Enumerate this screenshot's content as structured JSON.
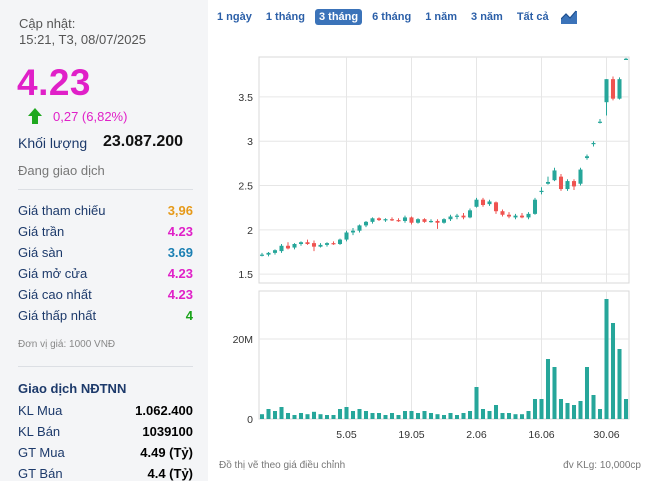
{
  "summary": {
    "updated_label": "Cập nhật:",
    "updated_value": "15:21, T3, 08/07/2025",
    "price": "4.23",
    "change": "0,27 (6,82%)",
    "volume_label": "Khối lượng",
    "volume_value": "23.087.200",
    "status": "Đang giao dịch"
  },
  "price_rows": [
    {
      "label": "Giá tham chiếu",
      "value": "3,96",
      "color": "#e69a1a"
    },
    {
      "label": "Giá trần",
      "value": "4.23",
      "color": "#e020c8"
    },
    {
      "label": "Giá sàn",
      "value": "3.69",
      "color": "#1a7fb3"
    },
    {
      "label": "Giá mở cửa",
      "value": "4.23",
      "color": "#e020c8"
    },
    {
      "label": "Giá cao nhất",
      "value": "4.23",
      "color": "#e020c8"
    },
    {
      "label": "Giá thấp nhất",
      "value": "4",
      "color": "#1aa31a"
    }
  ],
  "unit_note": "Đơn vị giá: 1000 VNĐ",
  "foreign": {
    "title": "Giao dịch NĐTNN",
    "rows": [
      {
        "label": "KL Mua",
        "value": "1.062.400"
      },
      {
        "label": "KL Bán",
        "value": "1039100"
      },
      {
        "label": "GT Mua",
        "value": "4.49 (Tỷ)"
      },
      {
        "label": "GT Bán",
        "value": "4.4 (Tỷ)"
      }
    ]
  },
  "tabs": [
    "1 ngày",
    "1 tháng",
    "3 tháng",
    "6 tháng",
    "1 năm",
    "3 năm",
    "Tất cả"
  ],
  "active_tab": 2,
  "footnote": "Đồ thị vẽ theo giá điều chỉnh",
  "volume_unit_note": "đv KLg: 10,000cp",
  "colors": {
    "up": "#26a69a",
    "down": "#ef5350",
    "accent": "#e020c8",
    "grid": "#e6e6e6",
    "volume": "#26a69a"
  },
  "chart_data": {
    "type": "candlestick",
    "price_axis": {
      "ticks": [
        1.5,
        2,
        2.5,
        3,
        3.5
      ],
      "range": [
        1.4,
        3.95
      ]
    },
    "volume_axis": {
      "ticks": [
        0,
        20
      ],
      "tick_labels": [
        "0",
        "20M"
      ],
      "unit": "M",
      "range": [
        0,
        32
      ]
    },
    "x_tick_labels": [
      "5.05",
      "19.05",
      "2.06",
      "16.06",
      "30.06"
    ],
    "x_tick_indices": [
      13,
      23,
      33,
      43,
      53
    ],
    "candles": [
      {
        "o": 1.71,
        "h": 1.74,
        "l": 1.7,
        "c": 1.72,
        "v": 1.2
      },
      {
        "o": 1.72,
        "h": 1.75,
        "l": 1.7,
        "c": 1.74,
        "v": 2.5
      },
      {
        "o": 1.74,
        "h": 1.78,
        "l": 1.72,
        "c": 1.77,
        "v": 2.0
      },
      {
        "o": 1.76,
        "h": 1.84,
        "l": 1.74,
        "c": 1.82,
        "v": 3.0
      },
      {
        "o": 1.82,
        "h": 1.86,
        "l": 1.78,
        "c": 1.79,
        "v": 1.5
      },
      {
        "o": 1.8,
        "h": 1.85,
        "l": 1.78,
        "c": 1.84,
        "v": 1.0
      },
      {
        "o": 1.84,
        "h": 1.87,
        "l": 1.82,
        "c": 1.86,
        "v": 1.5
      },
      {
        "o": 1.86,
        "h": 1.89,
        "l": 1.83,
        "c": 1.84,
        "v": 1.2
      },
      {
        "o": 1.85,
        "h": 1.88,
        "l": 1.76,
        "c": 1.81,
        "v": 1.8
      },
      {
        "o": 1.81,
        "h": 1.85,
        "l": 1.8,
        "c": 1.83,
        "v": 1.2
      },
      {
        "o": 1.83,
        "h": 1.86,
        "l": 1.81,
        "c": 1.85,
        "v": 1.0
      },
      {
        "o": 1.85,
        "h": 1.87,
        "l": 1.83,
        "c": 1.84,
        "v": 1.0
      },
      {
        "o": 1.84,
        "h": 1.9,
        "l": 1.83,
        "c": 1.89,
        "v": 2.5
      },
      {
        "o": 1.89,
        "h": 1.99,
        "l": 1.87,
        "c": 1.97,
        "v": 3.0
      },
      {
        "o": 1.97,
        "h": 2.02,
        "l": 1.94,
        "c": 1.99,
        "v": 2.0
      },
      {
        "o": 1.99,
        "h": 2.06,
        "l": 1.97,
        "c": 2.05,
        "v": 2.5
      },
      {
        "o": 2.05,
        "h": 2.1,
        "l": 2.03,
        "c": 2.09,
        "v": 2.0
      },
      {
        "o": 2.09,
        "h": 2.14,
        "l": 2.07,
        "c": 2.13,
        "v": 1.5
      },
      {
        "o": 2.13,
        "h": 2.14,
        "l": 2.1,
        "c": 2.11,
        "v": 1.5
      },
      {
        "o": 2.11,
        "h": 2.13,
        "l": 2.09,
        "c": 2.12,
        "v": 1.0
      },
      {
        "o": 2.12,
        "h": 2.14,
        "l": 2.1,
        "c": 2.11,
        "v": 1.5
      },
      {
        "o": 2.11,
        "h": 2.13,
        "l": 2.09,
        "c": 2.1,
        "v": 1.0
      },
      {
        "o": 2.1,
        "h": 2.16,
        "l": 2.08,
        "c": 2.14,
        "v": 2.0
      },
      {
        "o": 2.14,
        "h": 2.15,
        "l": 2.06,
        "c": 2.08,
        "v": 2.0
      },
      {
        "o": 2.08,
        "h": 2.13,
        "l": 2.07,
        "c": 2.12,
        "v": 1.5
      },
      {
        "o": 2.12,
        "h": 2.13,
        "l": 2.08,
        "c": 2.09,
        "v": 2.0
      },
      {
        "o": 2.09,
        "h": 2.12,
        "l": 2.08,
        "c": 2.1,
        "v": 1.5
      },
      {
        "o": 2.1,
        "h": 2.12,
        "l": 2.01,
        "c": 2.08,
        "v": 1.2
      },
      {
        "o": 2.08,
        "h": 2.13,
        "l": 2.07,
        "c": 2.12,
        "v": 1.0
      },
      {
        "o": 2.12,
        "h": 2.17,
        "l": 2.1,
        "c": 2.15,
        "v": 1.5
      },
      {
        "o": 2.15,
        "h": 2.18,
        "l": 2.12,
        "c": 2.16,
        "v": 1.0
      },
      {
        "o": 2.16,
        "h": 2.19,
        "l": 2.12,
        "c": 2.14,
        "v": 1.5
      },
      {
        "o": 2.14,
        "h": 2.24,
        "l": 2.13,
        "c": 2.22,
        "v": 2.0
      },
      {
        "o": 2.26,
        "h": 2.36,
        "l": 2.25,
        "c": 2.34,
        "v": 8.0
      },
      {
        "o": 2.34,
        "h": 2.36,
        "l": 2.26,
        "c": 2.28,
        "v": 2.5
      },
      {
        "o": 2.29,
        "h": 2.34,
        "l": 2.27,
        "c": 2.32,
        "v": 2.0
      },
      {
        "o": 2.31,
        "h": 2.32,
        "l": 2.18,
        "c": 2.21,
        "v": 3.5
      },
      {
        "o": 2.21,
        "h": 2.23,
        "l": 2.15,
        "c": 2.17,
        "v": 1.5
      },
      {
        "o": 2.17,
        "h": 2.2,
        "l": 2.13,
        "c": 2.15,
        "v": 1.5
      },
      {
        "o": 2.14,
        "h": 2.18,
        "l": 2.12,
        "c": 2.16,
        "v": 1.2
      },
      {
        "o": 2.16,
        "h": 2.19,
        "l": 2.13,
        "c": 2.14,
        "v": 1.2
      },
      {
        "o": 2.14,
        "h": 2.2,
        "l": 2.12,
        "c": 2.18,
        "v": 2.0
      },
      {
        "o": 2.18,
        "h": 2.36,
        "l": 2.17,
        "c": 2.34,
        "v": 5.0
      },
      {
        "o": 2.43,
        "h": 2.48,
        "l": 2.4,
        "c": 2.44,
        "v": 5.0
      },
      {
        "o": 2.52,
        "h": 2.6,
        "l": 2.51,
        "c": 2.54,
        "v": 15.0
      },
      {
        "o": 2.56,
        "h": 2.7,
        "l": 2.55,
        "c": 2.67,
        "v": 13.0
      },
      {
        "o": 2.6,
        "h": 2.63,
        "l": 2.44,
        "c": 2.46,
        "v": 5.0
      },
      {
        "o": 2.46,
        "h": 2.57,
        "l": 2.44,
        "c": 2.55,
        "v": 4.0
      },
      {
        "o": 2.55,
        "h": 2.57,
        "l": 2.45,
        "c": 2.49,
        "v": 3.5
      },
      {
        "o": 2.52,
        "h": 2.7,
        "l": 2.5,
        "c": 2.68,
        "v": 4.5
      },
      {
        "o": 2.81,
        "h": 2.85,
        "l": 2.79,
        "c": 2.83,
        "v": 13.0
      },
      {
        "o": 2.97,
        "h": 3.0,
        "l": 2.94,
        "c": 2.98,
        "v": 6.0
      },
      {
        "o": 3.22,
        "h": 3.25,
        "l": 3.2,
        "c": 3.22,
        "v": 2.5
      },
      {
        "o": 3.44,
        "h": 3.7,
        "l": 3.29,
        "c": 3.7,
        "v": 30.0
      },
      {
        "o": 3.7,
        "h": 3.73,
        "l": 3.46,
        "c": 3.48,
        "v": 24.0
      },
      {
        "o": 3.48,
        "h": 3.72,
        "l": 3.47,
        "c": 3.7,
        "v": 17.5
      },
      {
        "o": 3.93,
        "h": 3.94,
        "l": 3.92,
        "c": 3.93,
        "v": 5.0
      }
    ]
  }
}
